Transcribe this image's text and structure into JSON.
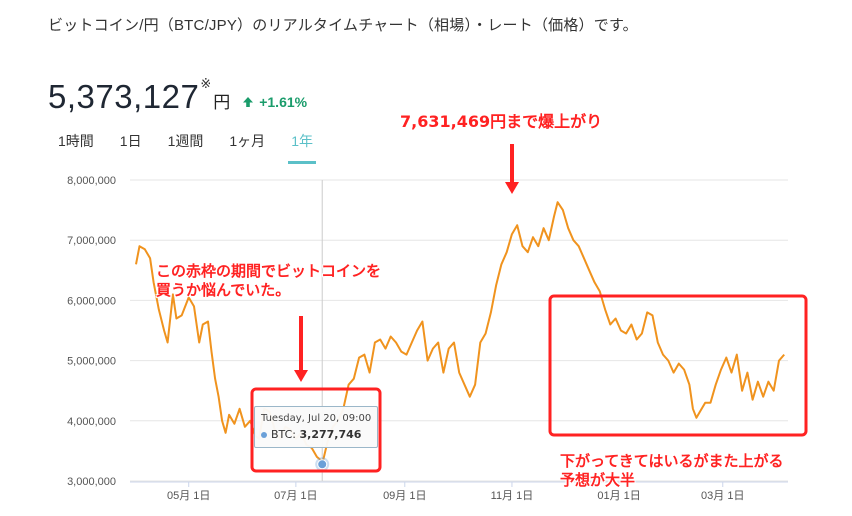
{
  "header": {
    "headline": "ビットコイン/円（BTC/JPY）のリアルタイムチャート（相場）・レート（価格）です。"
  },
  "price": {
    "value": "5,373,127",
    "mark": "※",
    "unit": "円",
    "change": "+1.61%",
    "change_color": "#1a9c6b"
  },
  "tabs": [
    {
      "label": "1時間",
      "active": false
    },
    {
      "label": "1日",
      "active": false
    },
    {
      "label": "1週間",
      "active": false
    },
    {
      "label": "1ヶ月",
      "active": false
    },
    {
      "label": "1年",
      "active": true
    }
  ],
  "tooltip": {
    "date": "Tuesday, Jul 20, 09:00",
    "series": "BTC:",
    "value": "3,277,746"
  },
  "annotations": {
    "top": "7,631,469円まで爆上がり",
    "left": [
      "この赤枠の期間でビットコインを",
      "買うか悩んでいた。"
    ],
    "right": [
      "下がってきてはいるがまた上がる",
      "予想が大半"
    ]
  },
  "colors": {
    "line": "#f0931e",
    "accent_tab": "#5bc0c8",
    "annotation": "#ff2222",
    "grid": "#e6e6e6"
  },
  "chart_data": {
    "type": "line",
    "title": "",
    "xlabel": "",
    "ylabel": "",
    "ylim": [
      3000000,
      8000000
    ],
    "y_ticks": [
      "3,000,000",
      "4,000,000",
      "5,000,000",
      "6,000,000",
      "7,000,000",
      "8,000,000"
    ],
    "x_ticks": [
      "05月 1日",
      "07月 1日",
      "09月 1日",
      "11月 1日",
      "01月 1日",
      "03月 1日"
    ],
    "x_tick_days": [
      30,
      91,
      153,
      214,
      275,
      334
    ],
    "x_range_days": [
      0,
      370
    ],
    "grid": true,
    "legend": "none",
    "series": [
      {
        "name": "BTC",
        "points": [
          [
            0,
            6600000
          ],
          [
            2,
            6900000
          ],
          [
            5,
            6850000
          ],
          [
            8,
            6700000
          ],
          [
            10,
            6300000
          ],
          [
            13,
            5850000
          ],
          [
            16,
            5500000
          ],
          [
            18,
            5300000
          ],
          [
            21,
            6100000
          ],
          [
            23,
            5700000
          ],
          [
            26,
            5750000
          ],
          [
            30,
            6050000
          ],
          [
            33,
            5900000
          ],
          [
            36,
            5300000
          ],
          [
            38,
            5600000
          ],
          [
            41,
            5650000
          ],
          [
            43,
            5150000
          ],
          [
            45,
            4700000
          ],
          [
            47,
            4400000
          ],
          [
            49,
            4000000
          ],
          [
            51,
            3800000
          ],
          [
            53,
            4100000
          ],
          [
            56,
            3950000
          ],
          [
            59,
            4200000
          ],
          [
            62,
            3900000
          ],
          [
            65,
            4000000
          ],
          [
            68,
            3750000
          ],
          [
            70,
            3700000
          ],
          [
            73,
            4200000
          ],
          [
            76,
            4150000
          ],
          [
            79,
            3850000
          ],
          [
            82,
            3700000
          ],
          [
            85,
            3900000
          ],
          [
            88,
            3850000
          ],
          [
            91,
            3700000
          ],
          [
            94,
            3800000
          ],
          [
            97,
            3600000
          ],
          [
            100,
            3550000
          ],
          [
            103,
            3400000
          ],
          [
            105,
            3350000
          ],
          [
            106,
            3277746
          ],
          [
            109,
            3650000
          ],
          [
            112,
            3900000
          ],
          [
            115,
            4000000
          ],
          [
            118,
            4200000
          ],
          [
            121,
            4600000
          ],
          [
            124,
            4700000
          ],
          [
            127,
            5050000
          ],
          [
            130,
            5100000
          ],
          [
            133,
            4800000
          ],
          [
            136,
            5300000
          ],
          [
            139,
            5350000
          ],
          [
            142,
            5200000
          ],
          [
            145,
            5400000
          ],
          [
            148,
            5300000
          ],
          [
            151,
            5150000
          ],
          [
            154,
            5100000
          ],
          [
            157,
            5300000
          ],
          [
            160,
            5500000
          ],
          [
            163,
            5650000
          ],
          [
            166,
            5000000
          ],
          [
            169,
            5200000
          ],
          [
            172,
            5300000
          ],
          [
            175,
            4800000
          ],
          [
            178,
            5200000
          ],
          [
            181,
            5300000
          ],
          [
            184,
            4800000
          ],
          [
            187,
            4600000
          ],
          [
            190,
            4400000
          ],
          [
            193,
            4600000
          ],
          [
            196,
            5300000
          ],
          [
            199,
            5450000
          ],
          [
            202,
            5800000
          ],
          [
            205,
            6250000
          ],
          [
            208,
            6600000
          ],
          [
            211,
            6800000
          ],
          [
            214,
            7100000
          ],
          [
            217,
            7250000
          ],
          [
            220,
            6900000
          ],
          [
            223,
            6800000
          ],
          [
            226,
            7050000
          ],
          [
            229,
            6900000
          ],
          [
            232,
            7200000
          ],
          [
            235,
            7000000
          ],
          [
            238,
            7400000
          ],
          [
            240,
            7631469
          ],
          [
            243,
            7500000
          ],
          [
            246,
            7200000
          ],
          [
            249,
            7000000
          ],
          [
            252,
            6900000
          ],
          [
            255,
            6700000
          ],
          [
            258,
            6500000
          ],
          [
            261,
            6300000
          ],
          [
            264,
            6150000
          ],
          [
            267,
            5850000
          ],
          [
            270,
            5600000
          ],
          [
            273,
            5700000
          ],
          [
            276,
            5500000
          ],
          [
            279,
            5450000
          ],
          [
            282,
            5600000
          ],
          [
            285,
            5350000
          ],
          [
            288,
            5450000
          ],
          [
            291,
            5800000
          ],
          [
            294,
            5750000
          ],
          [
            297,
            5300000
          ],
          [
            300,
            5100000
          ],
          [
            303,
            5000000
          ],
          [
            306,
            4800000
          ],
          [
            309,
            4950000
          ],
          [
            312,
            4850000
          ],
          [
            315,
            4600000
          ],
          [
            317,
            4200000
          ],
          [
            319,
            4050000
          ],
          [
            321,
            4150000
          ],
          [
            324,
            4300000
          ],
          [
            327,
            4300000
          ],
          [
            330,
            4600000
          ],
          [
            333,
            4850000
          ],
          [
            336,
            5050000
          ],
          [
            339,
            4800000
          ],
          [
            342,
            5100000
          ],
          [
            345,
            4500000
          ],
          [
            348,
            4800000
          ],
          [
            351,
            4350000
          ],
          [
            354,
            4650000
          ],
          [
            357,
            4400000
          ],
          [
            360,
            4650000
          ],
          [
            363,
            4500000
          ],
          [
            366,
            5000000
          ],
          [
            369,
            5100000
          ]
        ]
      }
    ]
  }
}
